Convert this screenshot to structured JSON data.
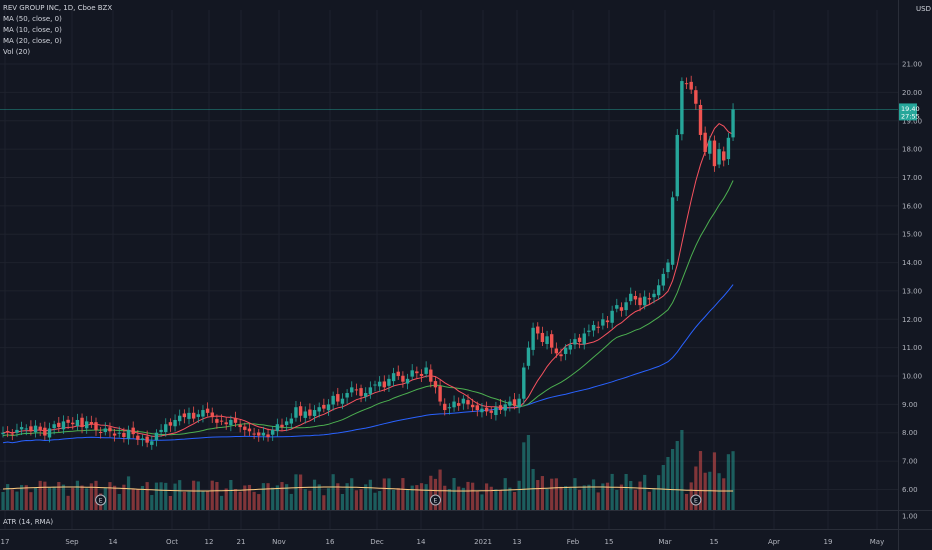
{
  "legend": {
    "title": "REV GROUP INC, 1D, Cboe BZX",
    "ma50": "MA (50, close, 0)",
    "ma10": "MA (10, close, 0)",
    "ma20": "MA (20, close, 0)",
    "vol": "Vol (20)"
  },
  "atr_label": "ATR (14, RMA)",
  "currency": "USD",
  "colors": {
    "background": "#131722",
    "up": "#26a69a",
    "down": "#ef5350",
    "ma50": "#2962ff",
    "ma10": "#f7525f",
    "ma20": "#4caf50",
    "vol_ma": "#ffcc80",
    "grid": "#1e222d",
    "text": "#b2b5be",
    "current_price_bg": "#26a69a"
  },
  "chart_data": {
    "type": "candlestick",
    "y_ticks": [
      "21.00",
      "20.00",
      "19.00",
      "18.00",
      "17.00",
      "16.00",
      "15.00",
      "14.00",
      "13.00",
      "12.00",
      "11.00",
      "10.00",
      "9.00",
      "8.00",
      "7.00",
      "6.00"
    ],
    "ylim": [
      5.6,
      21.7
    ],
    "atr_ticks": [
      "1.00"
    ],
    "x_ticks": [
      "17",
      "Sep",
      "14",
      "Oct",
      "12",
      "21",
      "Nov",
      "16",
      "Dec",
      "14",
      "2021",
      "13",
      "Feb",
      "15",
      "Mar",
      "15",
      "Apr",
      "19",
      "May"
    ],
    "current_price": "19.40",
    "current_price_sub": "27:55",
    "earnings_markers": [
      "E",
      "E",
      "E"
    ],
    "close": [
      8.0,
      8.05,
      7.95,
      8.1,
      8.2,
      8.15,
      8.05,
      8.25,
      8.1,
      7.9,
      8.15,
      8.3,
      8.2,
      8.4,
      8.35,
      8.3,
      8.45,
      8.2,
      8.4,
      8.3,
      8.1,
      8.0,
      8.15,
      8.05,
      7.9,
      8.0,
      7.85,
      8.1,
      7.95,
      7.75,
      7.8,
      7.65,
      7.7,
      8.0,
      8.1,
      8.3,
      8.25,
      8.45,
      8.6,
      8.55,
      8.7,
      8.5,
      8.65,
      8.8,
      8.7,
      8.55,
      8.35,
      8.4,
      8.3,
      8.45,
      8.35,
      8.2,
      8.1,
      8.05,
      7.95,
      7.9,
      8.0,
      7.85,
      8.1,
      8.3,
      8.2,
      8.4,
      8.5,
      8.9,
      8.6,
      8.75,
      8.6,
      8.8,
      8.9,
      8.85,
      9.0,
      9.3,
      9.1,
      9.2,
      9.4,
      9.6,
      9.5,
      9.3,
      9.4,
      9.6,
      9.7,
      9.8,
      9.6,
      9.9,
      10.1,
      10.0,
      9.8,
      9.9,
      10.2,
      10.1,
      10.0,
      10.3,
      9.8,
      9.6,
      9.1,
      8.8,
      8.9,
      9.1,
      8.95,
      9.2,
      9.0,
      8.9,
      8.8,
      8.85,
      8.75,
      8.7,
      8.9,
      8.8,
      9.0,
      9.1,
      8.95,
      9.2,
      10.3,
      11.0,
      11.7,
      11.5,
      11.2,
      11.4,
      11.0,
      10.8,
      10.7,
      11.0,
      11.1,
      11.3,
      11.2,
      11.5,
      11.6,
      11.8,
      11.7,
      12.0,
      11.9,
      12.3,
      12.5,
      12.3,
      12.6,
      12.9,
      12.7,
      12.5,
      12.8,
      12.7,
      12.9,
      13.2,
      13.6,
      14.0,
      16.3,
      18.5,
      20.4,
      20.3,
      20.1,
      19.6,
      18.5,
      17.9,
      18.3,
      17.4,
      18.0,
      17.6,
      18.4,
      19.4
    ]
  }
}
